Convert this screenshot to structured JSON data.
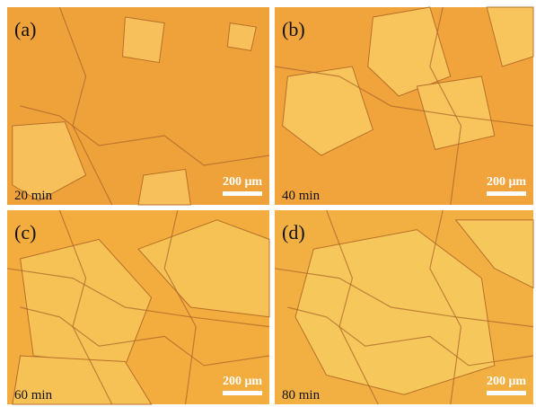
{
  "panels": [
    {
      "label": "(a)",
      "time": "20 min",
      "scale": "200 μm"
    },
    {
      "label": "(b)",
      "time": "40 min",
      "scale": "200 μm"
    },
    {
      "label": "(c)",
      "time": "60 min",
      "scale": "200 μm"
    },
    {
      "label": "(d)",
      "time": "80 min",
      "scale": "200 μm"
    }
  ]
}
